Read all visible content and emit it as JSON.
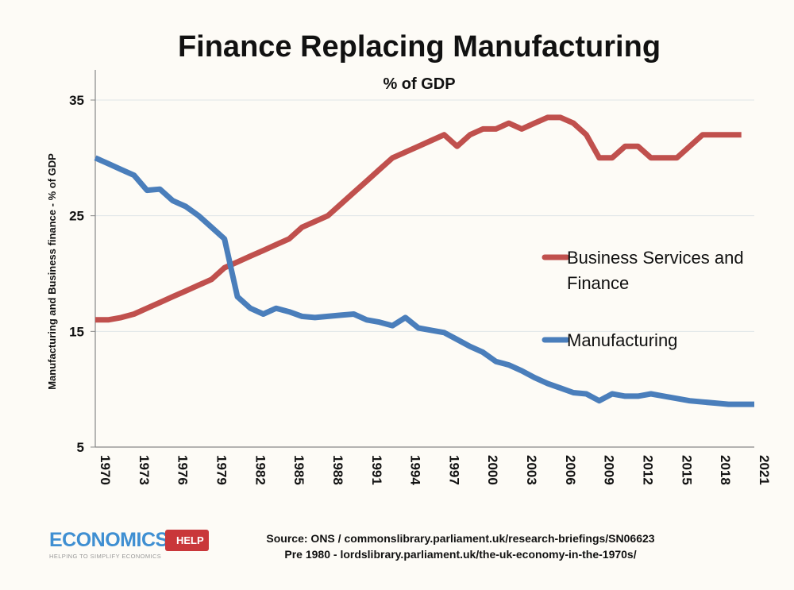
{
  "chart_data": {
    "type": "line",
    "title": "Finance Replacing Manufacturing",
    "subtitle": "% of GDP",
    "xlabel": "",
    "ylabel": "Manufacturing and Business finance - % of GDP",
    "xlim": [
      1970,
      2021
    ],
    "ylim": [
      5,
      38
    ],
    "yticks": [
      5,
      15,
      25,
      35
    ],
    "xticks": [
      1970,
      1973,
      1976,
      1979,
      1982,
      1985,
      1988,
      1991,
      1994,
      1997,
      2000,
      2003,
      2006,
      2009,
      2012,
      2015,
      2018,
      2021
    ],
    "grid": "horizontal",
    "legend_position": "right",
    "series": [
      {
        "name": "Business Services and Finance",
        "color": "#c0504d",
        "x": [
          1970,
          1971,
          1972,
          1973,
          1974,
          1975,
          1976,
          1977,
          1978,
          1979,
          1980,
          1981,
          1982,
          1983,
          1984,
          1985,
          1986,
          1987,
          1988,
          1989,
          1990,
          1991,
          1992,
          1993,
          1994,
          1995,
          1996,
          1997,
          1998,
          1999,
          2000,
          2001,
          2002,
          2003,
          2004,
          2005,
          2006,
          2007,
          2008,
          2009,
          2010,
          2011,
          2012,
          2013,
          2014,
          2015,
          2016,
          2017,
          2018,
          2019,
          2020
        ],
        "values": [
          16,
          16,
          16.2,
          16.5,
          17,
          17.5,
          18,
          18.5,
          19,
          19.5,
          20.5,
          21,
          21.5,
          22,
          22.5,
          23,
          24,
          24.5,
          25,
          26,
          27,
          28,
          29,
          30,
          30.5,
          31,
          31.5,
          32,
          31,
          32,
          32.5,
          32.5,
          33,
          32.5,
          33,
          33.5,
          33.5,
          33,
          32,
          30,
          30,
          31,
          31,
          30,
          30,
          30,
          31,
          32,
          32,
          32,
          32
        ]
      },
      {
        "name": "Manufacturing",
        "color": "#4a7ebb",
        "x": [
          1970,
          1971,
          1972,
          1973,
          1974,
          1975,
          1976,
          1977,
          1978,
          1979,
          1980,
          1981,
          1982,
          1983,
          1984,
          1985,
          1986,
          1987,
          1988,
          1989,
          1990,
          1991,
          1992,
          1993,
          1994,
          1995,
          1996,
          1997,
          1998,
          1999,
          2000,
          2001,
          2002,
          2003,
          2004,
          2005,
          2006,
          2007,
          2008,
          2009,
          2010,
          2011,
          2012,
          2013,
          2014,
          2015,
          2016,
          2017,
          2018,
          2019,
          2020,
          2021
        ],
        "values": [
          30,
          29.5,
          29,
          28.5,
          27.2,
          27.3,
          26.3,
          25.8,
          25,
          24,
          23,
          18,
          17,
          16.5,
          17,
          16.7,
          16.3,
          16.2,
          16.3,
          16.4,
          16.5,
          16,
          15.8,
          15.5,
          16.2,
          15.3,
          15.1,
          14.9,
          14.3,
          13.7,
          13.2,
          12.4,
          12.1,
          11.6,
          11,
          10.5,
          10.1,
          9.7,
          9.6,
          9.0,
          9.6,
          9.4,
          9.4,
          9.6,
          9.4,
          9.2,
          9.0,
          8.9,
          8.8,
          8.7,
          8.7,
          8.7
        ]
      }
    ]
  },
  "logo": {
    "word": "ECONOMICS",
    "badge": "HELP",
    "tagline": "HELPING TO SIMPLIFY ECONOMICS"
  },
  "source": {
    "line1": "Source: ONS / commonslibrary.parliament.uk/research-briefings/SN06623",
    "line2": "Pre 1980 - lordslibrary.parliament.uk/the-uk-economy-in-the-1970s/"
  }
}
